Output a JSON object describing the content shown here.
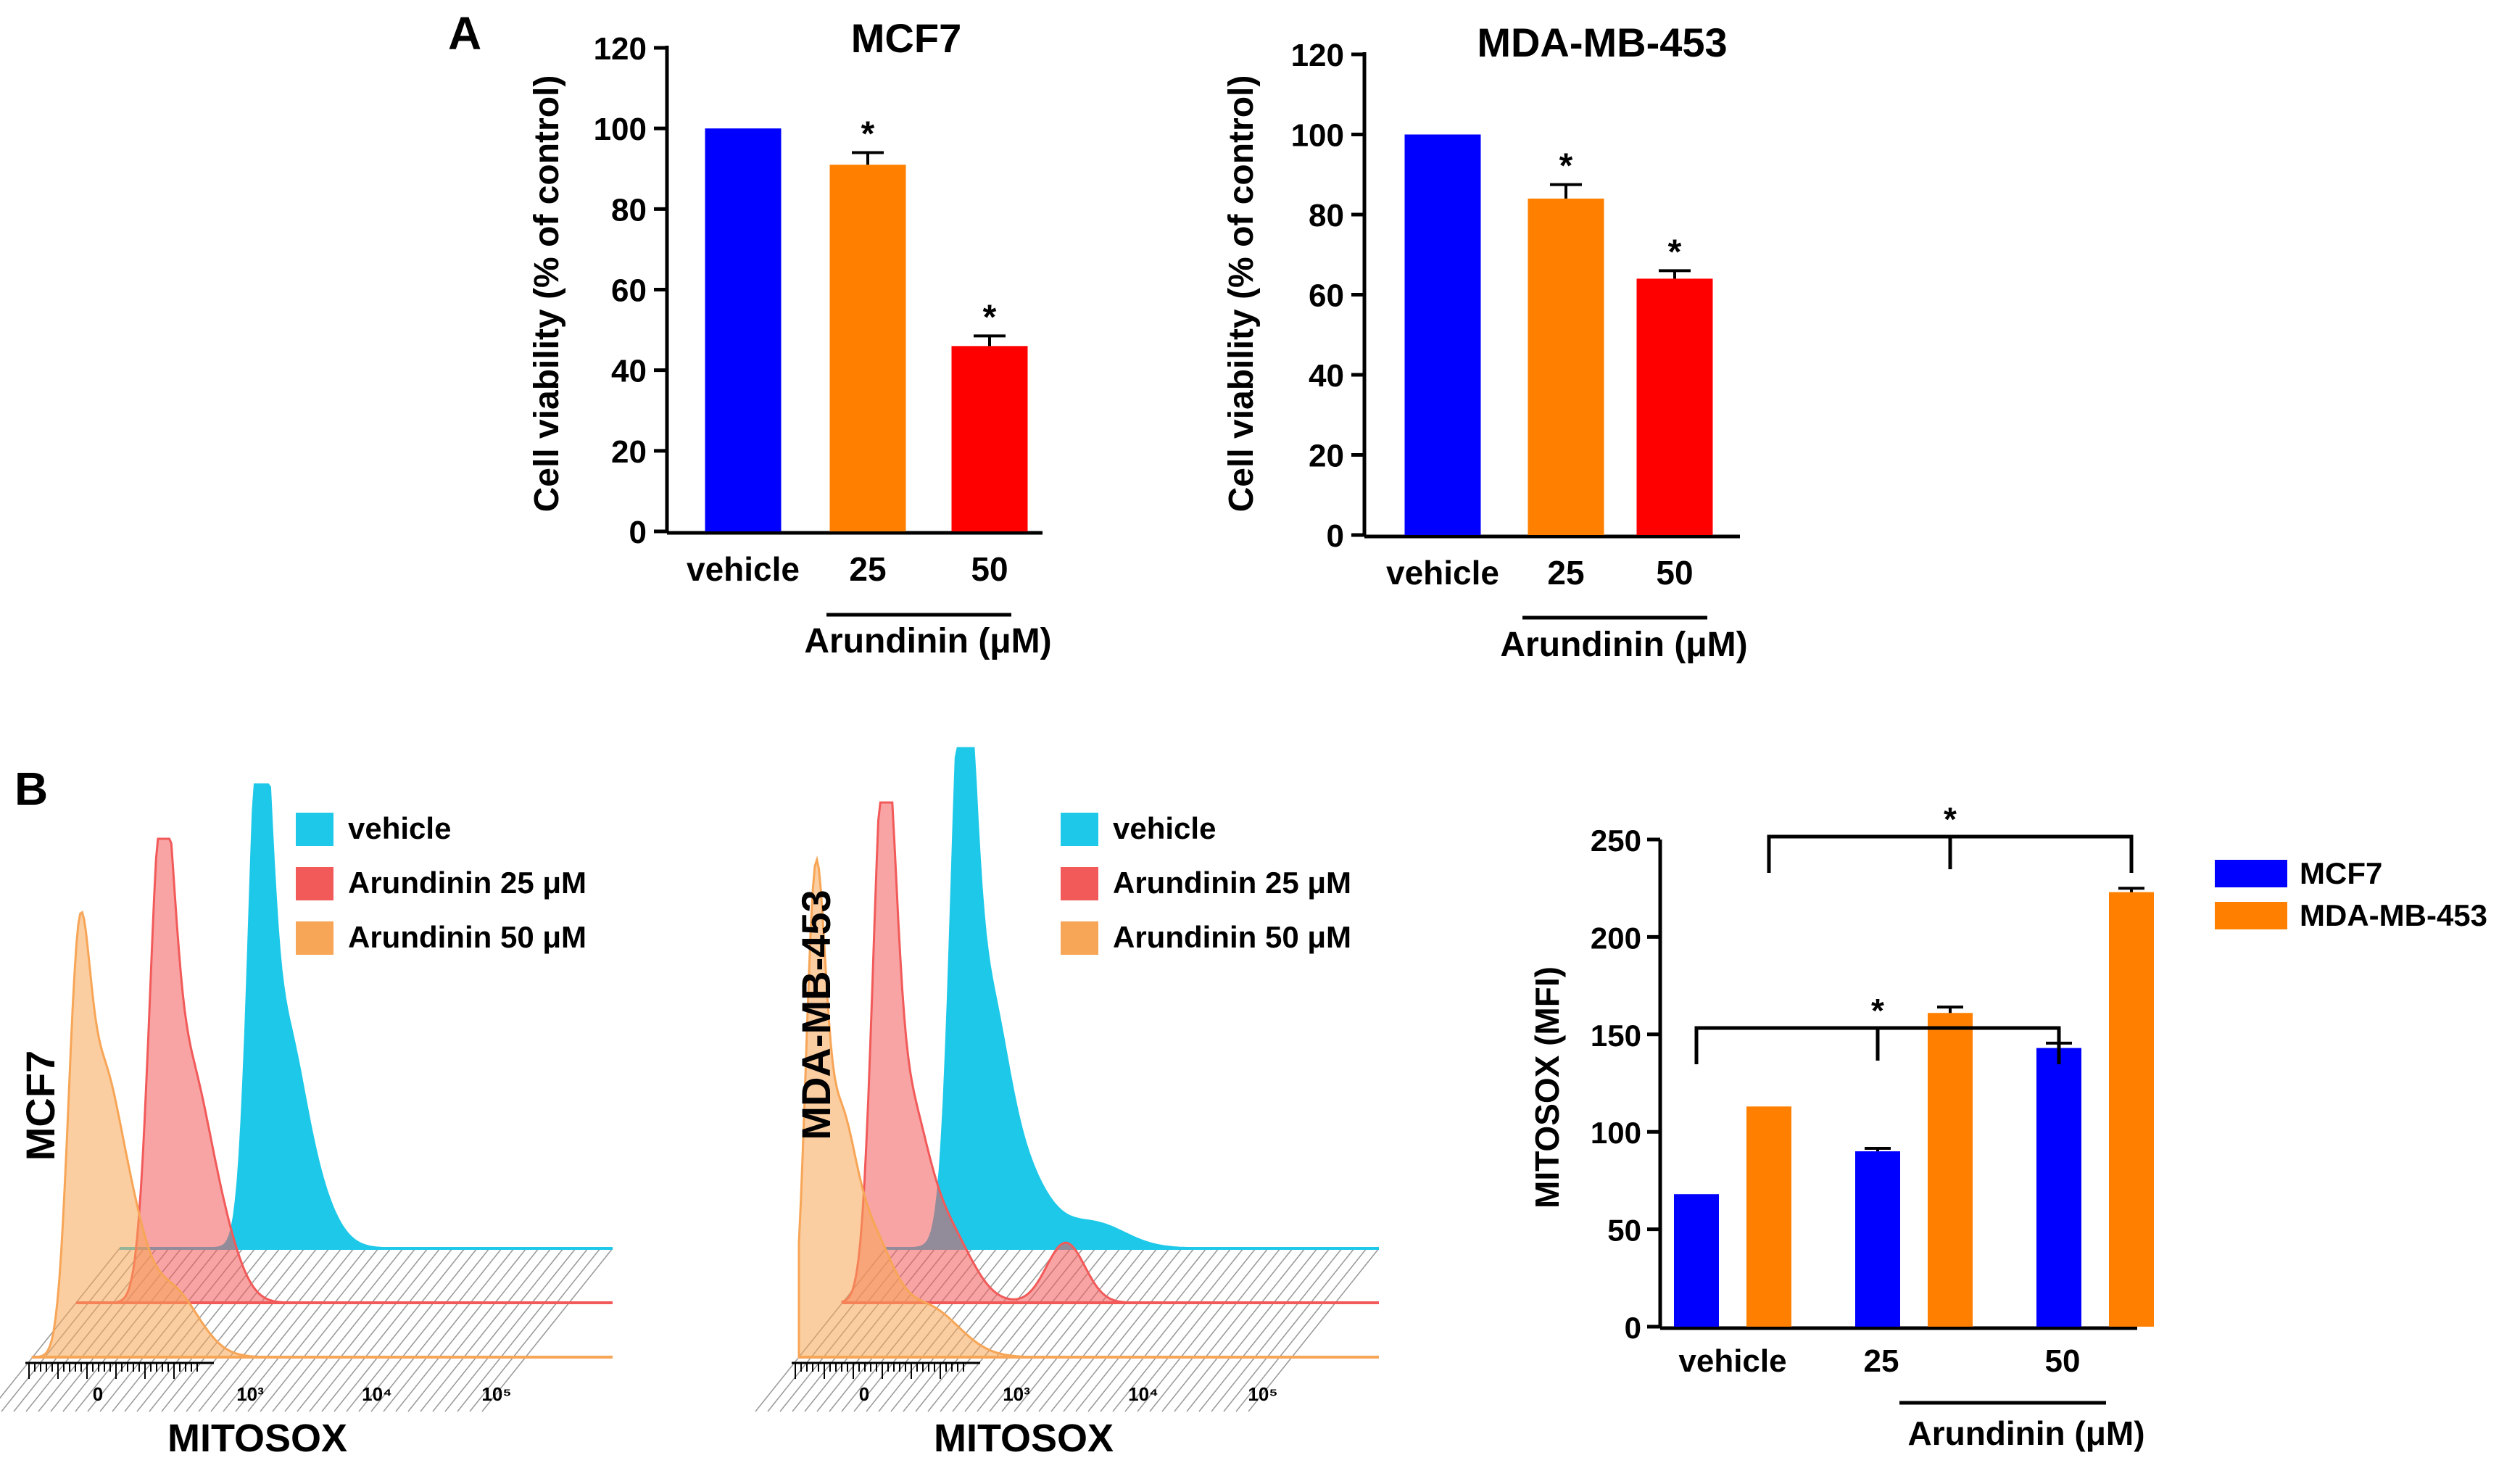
{
  "figure": {
    "panel_labels": [
      "A",
      "B"
    ],
    "colors": {
      "vehicle_bar": "#0000FF",
      "dose25_bar": "#FF8000",
      "dose50_bar": "#FF0000",
      "hist_vehicle": "#1DC8E8",
      "hist_25": "#F25A5A",
      "hist_50": "#F7A556",
      "mcf7_series": "#0000FF",
      "mda_series": "#FF8000"
    },
    "histograms": [
      {
        "cell_label": "MCF7",
        "xlabel": "MITOSOX",
        "ticks": [
          "0",
          "10³",
          "10⁴",
          "10⁵"
        ],
        "legend": [
          "vehicle",
          "Arundinin 25 μM",
          "Arundinin 50 μM"
        ]
      },
      {
        "cell_label": "MDA-MB-453",
        "xlabel": "MITOSOX",
        "ticks": [
          "0",
          "10³",
          "10⁴",
          "10⁵"
        ],
        "legend": [
          "vehicle",
          "Arundinin 25 μM",
          "Arundinin 50 μM"
        ]
      }
    ]
  },
  "chart_data": [
    {
      "type": "bar",
      "title": "MCF7",
      "categories": [
        "vehicle",
        "25",
        "50"
      ],
      "values": [
        100,
        91,
        46
      ],
      "errors": [
        0,
        3,
        2.5
      ],
      "significance": [
        "",
        "*",
        "*"
      ],
      "ylabel": "Cell viability (% of control)",
      "xlabel": "Arundinin (μM)",
      "ylim": [
        0,
        120
      ],
      "yticks": [
        "0",
        "20",
        "40",
        "60",
        "80",
        "100",
        "120"
      ]
    },
    {
      "type": "bar",
      "title": "MDA-MB-453",
      "categories": [
        "vehicle",
        "25",
        "50"
      ],
      "values": [
        100,
        84,
        64
      ],
      "errors": [
        0,
        3.5,
        2
      ],
      "significance": [
        "",
        "*",
        "*"
      ],
      "ylabel": "Cell viability (% of control)",
      "xlabel": "Arundinin (μM)",
      "ylim": [
        0,
        120
      ],
      "yticks": [
        "0",
        "20",
        "40",
        "60",
        "80",
        "100",
        "120"
      ]
    },
    {
      "type": "bar",
      "categories": [
        "vehicle",
        "25",
        "50"
      ],
      "series": [
        {
          "name": "MCF7",
          "values": [
            68,
            90,
            143
          ],
          "errors": [
            0,
            1.5,
            2.5
          ]
        },
        {
          "name": "MDA-MB-453",
          "values": [
            113,
            161,
            223
          ],
          "errors": [
            0,
            3,
            2
          ]
        }
      ],
      "ylabel": "MITOSOX (MFI)",
      "xlabel": "Arundinin (μM)",
      "ylim": [
        0,
        250
      ],
      "yticks": [
        "0",
        "50",
        "100",
        "150",
        "200",
        "250"
      ],
      "significance_marker": "*"
    }
  ]
}
